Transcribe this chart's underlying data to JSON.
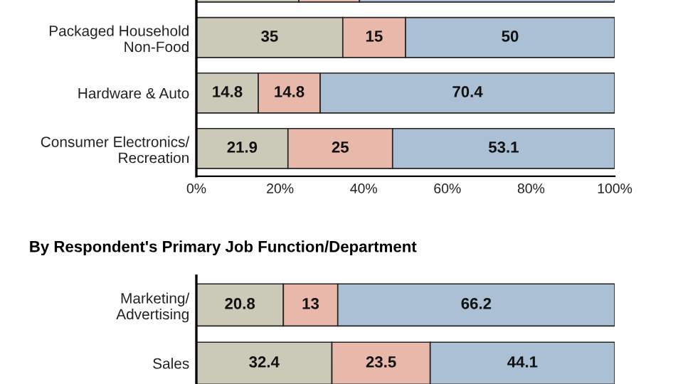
{
  "chart_data": [
    {
      "type": "bar",
      "orientation": "horizontal",
      "stacked": true,
      "categories": [
        null,
        "Packaged Household\nNon-Food",
        "Hardware & Auto",
        "Consumer Electronics/\nRecreation"
      ],
      "series": [
        {
          "color": "#cbc9b7",
          "values": [
            24.5,
            35,
            14.8,
            21.9
          ],
          "value_labels": [
            null,
            "35",
            "14.8",
            "21.9"
          ]
        },
        {
          "color": "#e8b9aa",
          "values": [
            14.5,
            15,
            14.8,
            25
          ],
          "value_labels": [
            null,
            "15",
            "14.8",
            "25"
          ]
        },
        {
          "color": "#abc0d4",
          "values": [
            61.0,
            50,
            70.4,
            53.1
          ],
          "value_labels": [
            null,
            "50",
            "70.4",
            "53.1"
          ]
        }
      ],
      "xlim": [
        0,
        100
      ],
      "xticks": [
        {
          "value": 0,
          "label": "0%"
        },
        {
          "value": 20,
          "label": "20%"
        },
        {
          "value": 40,
          "label": "40%"
        },
        {
          "value": 60,
          "label": "60%"
        },
        {
          "value": 80,
          "label": "80%"
        },
        {
          "value": 100,
          "label": "100%"
        }
      ],
      "grid": false,
      "legend": false
    },
    {
      "type": "bar",
      "orientation": "horizontal",
      "stacked": true,
      "title": "By Respondent's Primary Job Function/Department",
      "categories": [
        "Marketing/\nAdvertising",
        "Sales"
      ],
      "series": [
        {
          "color": "#cbc9b7",
          "values": [
            20.8,
            32.4
          ]
        },
        {
          "color": "#e8b9aa",
          "values": [
            13,
            23.5
          ]
        },
        {
          "color": "#abc0d4",
          "values": [
            66.2,
            44.1
          ]
        }
      ],
      "xlim": [
        0,
        100
      ],
      "tick_labels": "y",
      "data_labels": true,
      "grid": false,
      "legend": false
    }
  ]
}
